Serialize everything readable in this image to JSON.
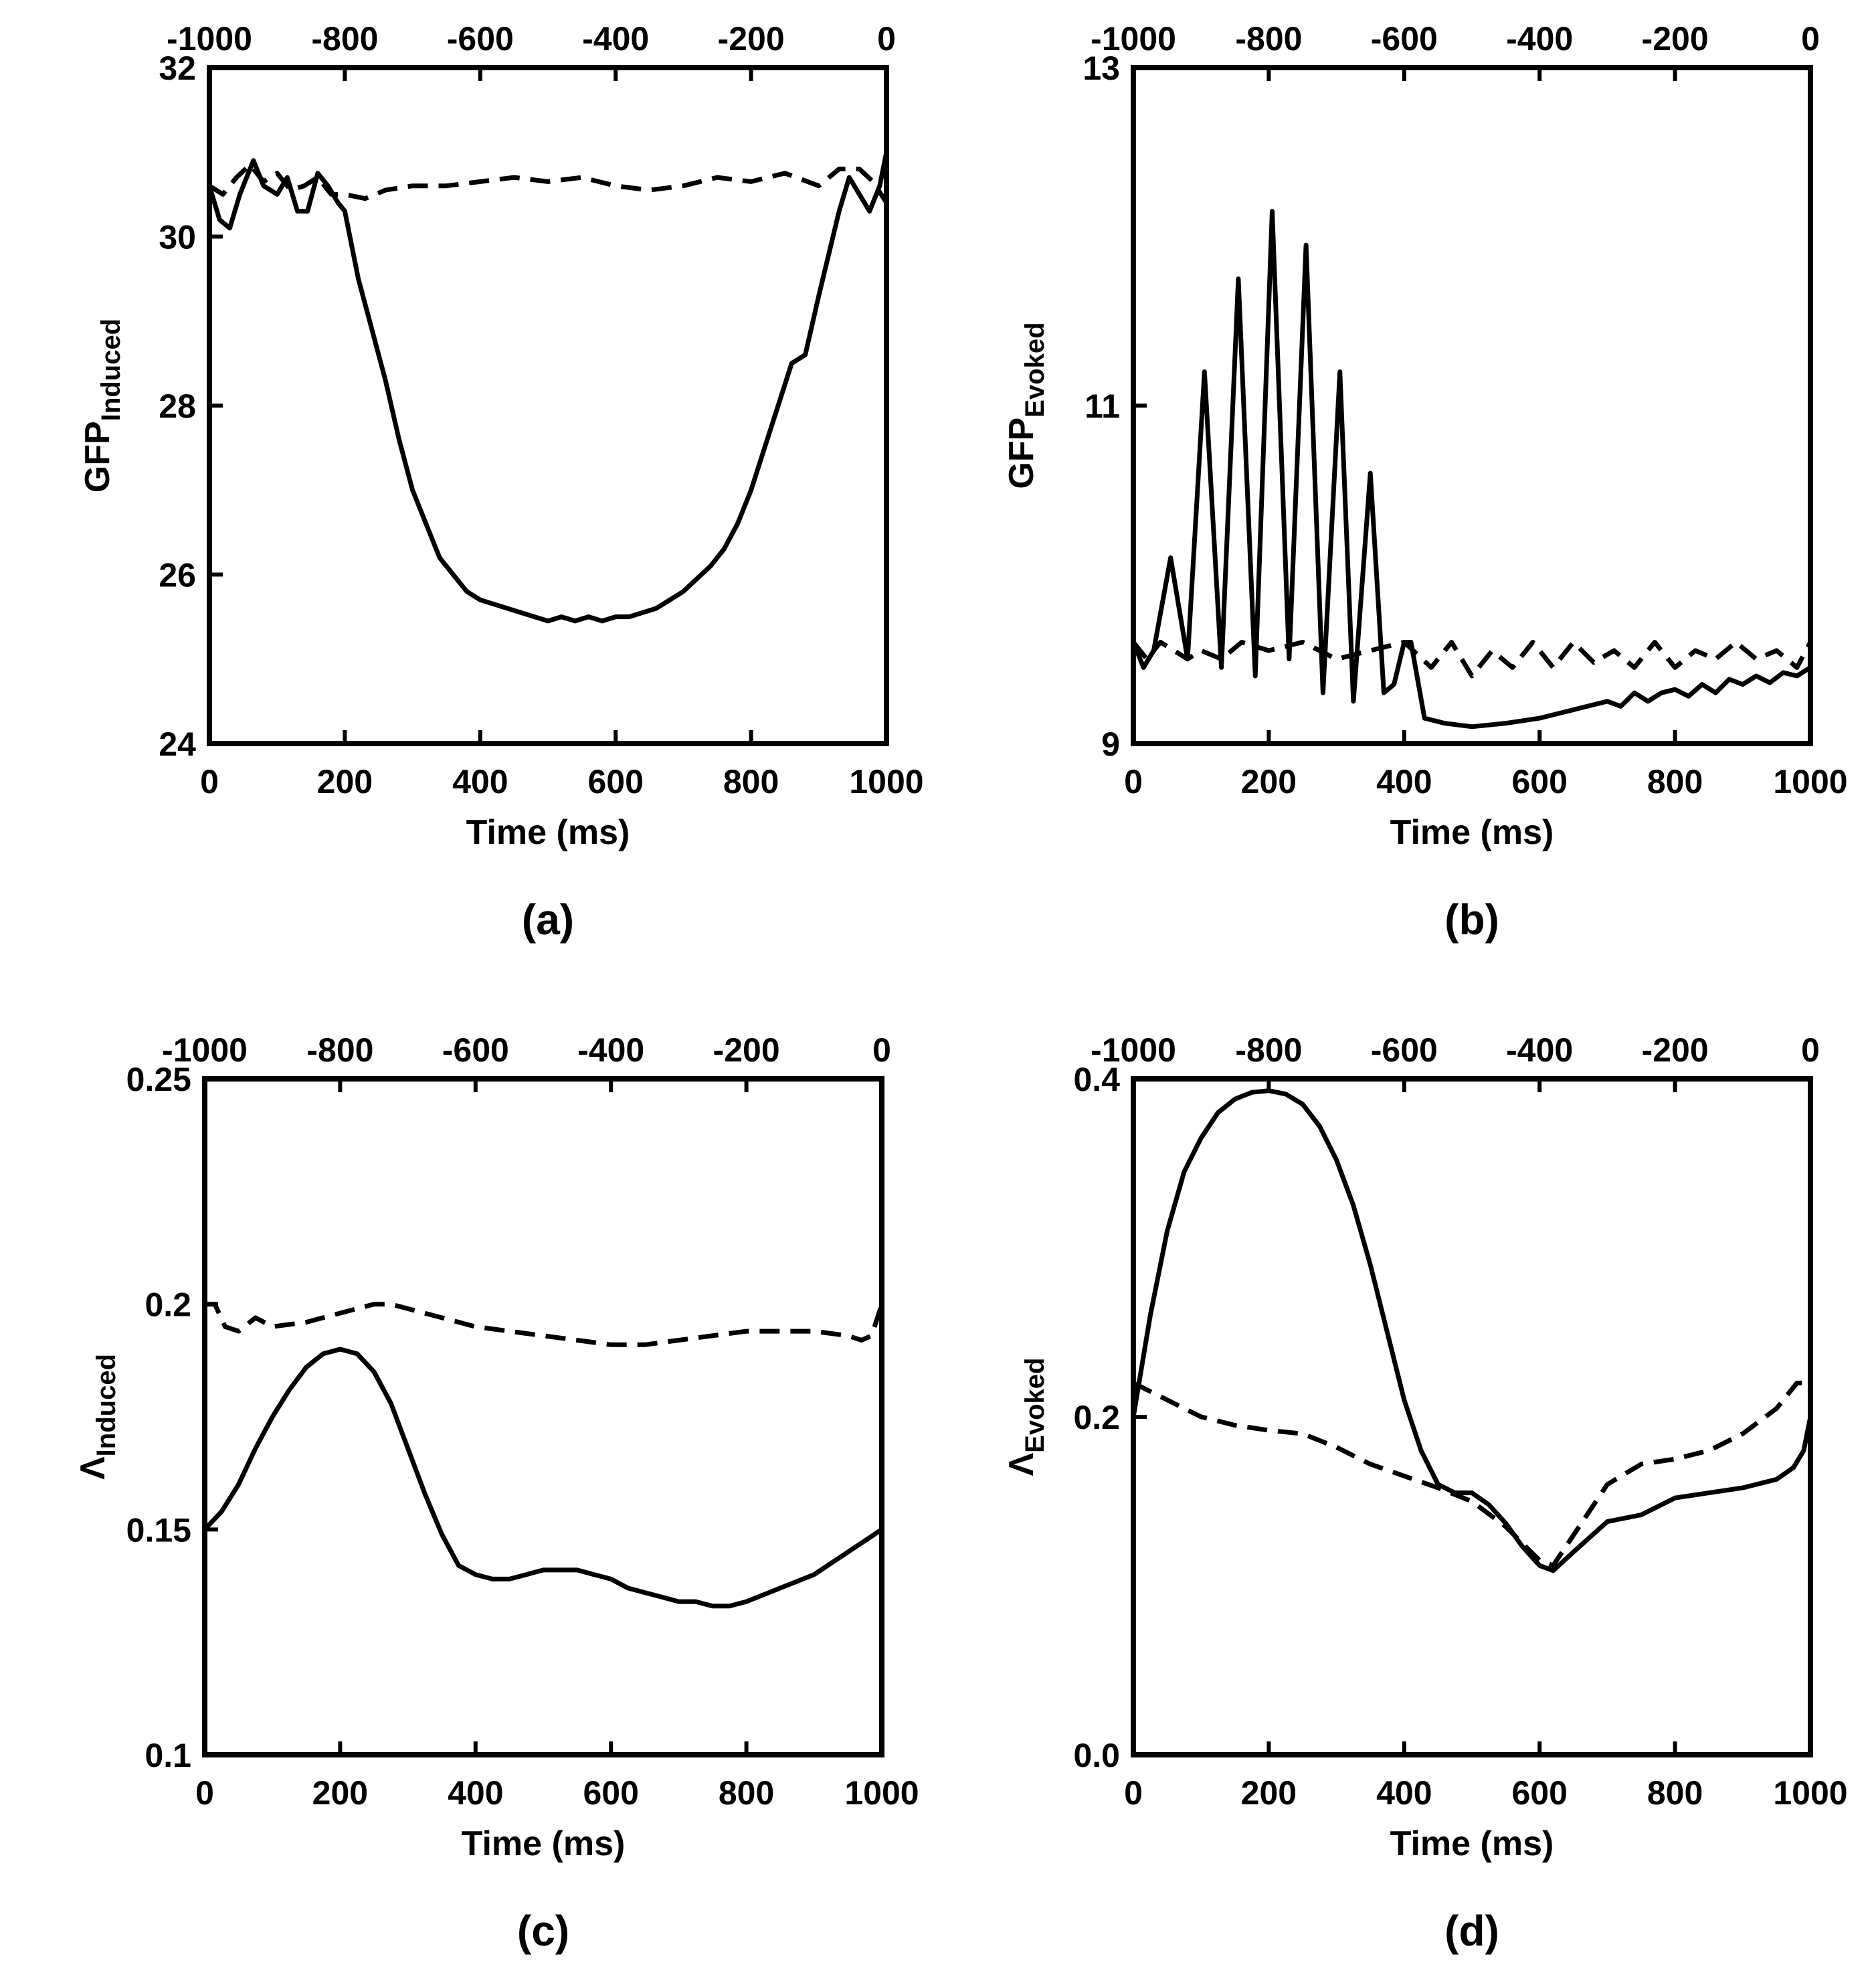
{
  "chart_data": [
    {
      "type": "line",
      "panel_label": "(a)",
      "xlabel": "Time (ms)",
      "ylabel": "GFP",
      "ylabel_sub": "Induced",
      "xlim": [
        0,
        1000
      ],
      "x_ticks": [
        0,
        200,
        400,
        600,
        800,
        1000
      ],
      "top_xlim": [
        -1000,
        0
      ],
      "top_x_ticks": [
        -1000,
        -800,
        -600,
        -400,
        -200,
        0
      ],
      "top_x_tick_labels": [
        "-1000",
        "-800",
        "-600",
        "-400",
        "-200",
        "0"
      ],
      "ylim": [
        24,
        32
      ],
      "y_ticks": [
        24,
        26,
        28,
        30,
        32
      ],
      "y_tick_labels": [
        "24",
        "26",
        "28",
        "30",
        "32"
      ],
      "series": [
        {
          "name": "solid",
          "style": "solid",
          "x": [
            0,
            15,
            30,
            45,
            65,
            80,
            100,
            115,
            130,
            145,
            160,
            175,
            190,
            200,
            220,
            240,
            260,
            280,
            300,
            320,
            340,
            360,
            380,
            400,
            420,
            440,
            460,
            480,
            500,
            520,
            540,
            560,
            580,
            600,
            620,
            640,
            660,
            680,
            700,
            720,
            740,
            760,
            780,
            800,
            820,
            840,
            860,
            880,
            900,
            915,
            930,
            945,
            960,
            975,
            990,
            1000
          ],
          "y": [
            30.6,
            30.2,
            30.1,
            30.5,
            30.9,
            30.6,
            30.5,
            30.7,
            30.3,
            30.3,
            30.75,
            30.6,
            30.4,
            30.3,
            29.5,
            28.9,
            28.3,
            27.6,
            27.0,
            26.6,
            26.2,
            26.0,
            25.8,
            25.7,
            25.65,
            25.6,
            25.55,
            25.5,
            25.45,
            25.5,
            25.45,
            25.5,
            25.45,
            25.5,
            25.5,
            25.55,
            25.6,
            25.7,
            25.8,
            25.95,
            26.1,
            26.3,
            26.6,
            27.0,
            27.5,
            28.0,
            28.5,
            28.6,
            29.3,
            29.8,
            30.3,
            30.7,
            30.5,
            30.3,
            30.6,
            31.0
          ]
        },
        {
          "name": "dashed",
          "style": "dashed",
          "x": [
            0,
            20,
            40,
            60,
            80,
            100,
            120,
            140,
            160,
            180,
            200,
            230,
            260,
            300,
            350,
            400,
            450,
            500,
            550,
            600,
            650,
            700,
            750,
            800,
            850,
            900,
            930,
            960,
            980,
            1000
          ],
          "y": [
            30.6,
            30.5,
            30.7,
            30.85,
            30.65,
            30.75,
            30.55,
            30.6,
            30.7,
            30.5,
            30.5,
            30.45,
            30.55,
            30.6,
            30.6,
            30.65,
            30.7,
            30.65,
            30.7,
            30.6,
            30.55,
            30.6,
            30.7,
            30.65,
            30.75,
            30.6,
            30.8,
            30.8,
            30.65,
            30.4
          ]
        }
      ]
    },
    {
      "type": "line",
      "panel_label": "(b)",
      "xlabel": "Time (ms)",
      "ylabel": "GFP",
      "ylabel_sub": "Evoked",
      "xlim": [
        0,
        1000
      ],
      "x_ticks": [
        0,
        200,
        400,
        600,
        800,
        1000
      ],
      "top_xlim": [
        -1000,
        0
      ],
      "top_x_ticks": [
        -1000,
        -800,
        -600,
        -400,
        -200,
        0
      ],
      "top_x_tick_labels": [
        "-1000",
        "-800",
        "-600",
        "-400",
        "-200",
        "0"
      ],
      "ylim": [
        9,
        13
      ],
      "y_ticks": [
        9,
        11,
        13
      ],
      "y_tick_labels": [
        "9",
        "11",
        "13"
      ],
      "series": [
        {
          "name": "solid",
          "style": "solid",
          "x": [
            0,
            15,
            30,
            55,
            80,
            105,
            130,
            155,
            180,
            205,
            230,
            255,
            280,
            305,
            325,
            350,
            370,
            385,
            400,
            410,
            430,
            460,
            500,
            550,
            600,
            650,
            700,
            720,
            740,
            760,
            780,
            800,
            820,
            840,
            860,
            880,
            900,
            920,
            940,
            960,
            980,
            1000
          ],
          "y": [
            9.6,
            9.45,
            9.55,
            10.1,
            9.5,
            11.2,
            9.45,
            11.75,
            9.4,
            12.15,
            9.5,
            11.95,
            9.3,
            11.2,
            9.25,
            10.6,
            9.3,
            9.35,
            9.6,
            9.6,
            9.15,
            9.12,
            9.1,
            9.12,
            9.15,
            9.2,
            9.25,
            9.22,
            9.3,
            9.25,
            9.3,
            9.32,
            9.28,
            9.35,
            9.3,
            9.38,
            9.35,
            9.4,
            9.36,
            9.42,
            9.4,
            9.45
          ]
        },
        {
          "name": "dashed",
          "style": "dashed",
          "x": [
            0,
            20,
            40,
            60,
            80,
            100,
            130,
            160,
            200,
            250,
            300,
            350,
            400,
            440,
            470,
            500,
            530,
            560,
            590,
            620,
            650,
            680,
            710,
            740,
            770,
            800,
            830,
            860,
            890,
            920,
            950,
            980,
            1000
          ],
          "y": [
            9.6,
            9.5,
            9.6,
            9.55,
            9.5,
            9.55,
            9.5,
            9.6,
            9.55,
            9.6,
            9.5,
            9.55,
            9.6,
            9.45,
            9.6,
            9.4,
            9.55,
            9.45,
            9.6,
            9.45,
            9.6,
            9.48,
            9.55,
            9.45,
            9.6,
            9.45,
            9.55,
            9.5,
            9.6,
            9.5,
            9.55,
            9.45,
            9.6
          ]
        }
      ]
    },
    {
      "type": "line",
      "panel_label": "(c)",
      "xlabel": "Time (ms)",
      "ylabel": "Λ",
      "ylabel_sub": "Induced",
      "xlim": [
        0,
        1000
      ],
      "x_ticks": [
        0,
        200,
        400,
        600,
        800,
        1000
      ],
      "top_xlim": [
        -1000,
        0
      ],
      "top_x_ticks": [
        -1000,
        -800,
        -600,
        -400,
        -200,
        0
      ],
      "top_x_tick_labels": [
        "-1000",
        "-800",
        "-600",
        "-400",
        "-200",
        "0"
      ],
      "ylim": [
        0.1,
        0.25
      ],
      "y_ticks": [
        0.1,
        0.15,
        0.2,
        0.25
      ],
      "y_tick_labels": [
        "0.1",
        "0.15",
        "0.2",
        "0.25"
      ],
      "series": [
        {
          "name": "solid",
          "style": "solid",
          "x": [
            0,
            25,
            50,
            75,
            100,
            125,
            150,
            175,
            200,
            225,
            250,
            275,
            300,
            325,
            350,
            375,
            400,
            425,
            450,
            475,
            500,
            525,
            550,
            575,
            600,
            625,
            650,
            675,
            700,
            725,
            750,
            775,
            800,
            850,
            900,
            950,
            1000
          ],
          "y": [
            0.15,
            0.154,
            0.16,
            0.168,
            0.175,
            0.181,
            0.186,
            0.189,
            0.19,
            0.189,
            0.185,
            0.178,
            0.168,
            0.158,
            0.149,
            0.142,
            0.14,
            0.139,
            0.139,
            0.14,
            0.141,
            0.141,
            0.141,
            0.14,
            0.139,
            0.137,
            0.136,
            0.135,
            0.134,
            0.134,
            0.133,
            0.133,
            0.134,
            0.137,
            0.14,
            0.145,
            0.15
          ]
        },
        {
          "name": "dashed",
          "style": "dashed",
          "x": [
            0,
            15,
            30,
            50,
            75,
            100,
            150,
            200,
            250,
            275,
            300,
            350,
            400,
            450,
            500,
            550,
            600,
            650,
            700,
            750,
            800,
            850,
            900,
            950,
            970,
            985,
            1000
          ],
          "y": [
            0.2,
            0.2,
            0.195,
            0.194,
            0.197,
            0.195,
            0.196,
            0.198,
            0.2,
            0.2,
            0.199,
            0.197,
            0.195,
            0.194,
            0.193,
            0.192,
            0.191,
            0.191,
            0.192,
            0.193,
            0.194,
            0.194,
            0.194,
            0.193,
            0.192,
            0.193,
            0.2
          ]
        }
      ]
    },
    {
      "type": "line",
      "panel_label": "(d)",
      "xlabel": "Time (ms)",
      "ylabel": "Λ",
      "ylabel_sub": "Evoked",
      "xlim": [
        0,
        1000
      ],
      "x_ticks": [
        0,
        200,
        400,
        600,
        800,
        1000
      ],
      "top_xlim": [
        -1000,
        0
      ],
      "top_x_ticks": [
        -1000,
        -800,
        -600,
        -400,
        -200,
        0
      ],
      "top_x_tick_labels": [
        "-1000",
        "-800",
        "-600",
        "-400",
        "-200",
        "0"
      ],
      "ylim": [
        0.0,
        0.4
      ],
      "y_ticks": [
        0.0,
        0.2,
        0.4
      ],
      "y_tick_labels": [
        "0.0",
        "0.2",
        "0.4"
      ],
      "series": [
        {
          "name": "solid",
          "style": "solid",
          "x": [
            0,
            25,
            50,
            75,
            100,
            125,
            150,
            175,
            200,
            225,
            250,
            275,
            300,
            325,
            350,
            375,
            400,
            425,
            450,
            475,
            500,
            525,
            550,
            575,
            600,
            620,
            650,
            700,
            750,
            800,
            850,
            900,
            950,
            975,
            990,
            1000
          ],
          "y": [
            0.2,
            0.26,
            0.31,
            0.345,
            0.365,
            0.38,
            0.388,
            0.392,
            0.393,
            0.391,
            0.385,
            0.372,
            0.352,
            0.325,
            0.29,
            0.25,
            0.21,
            0.18,
            0.16,
            0.155,
            0.155,
            0.148,
            0.137,
            0.123,
            0.112,
            0.109,
            0.12,
            0.138,
            0.142,
            0.152,
            0.155,
            0.158,
            0.163,
            0.17,
            0.18,
            0.2
          ]
        },
        {
          "name": "dashed",
          "style": "dashed",
          "x": [
            0,
            25,
            50,
            100,
            150,
            200,
            250,
            300,
            350,
            400,
            450,
            500,
            550,
            600,
            620,
            650,
            700,
            750,
            800,
            850,
            900,
            950,
            980,
            1000
          ],
          "y": [
            0.22,
            0.215,
            0.21,
            0.2,
            0.195,
            0.192,
            0.19,
            0.182,
            0.172,
            0.165,
            0.158,
            0.15,
            0.135,
            0.115,
            0.112,
            0.13,
            0.16,
            0.172,
            0.175,
            0.18,
            0.19,
            0.205,
            0.22,
            0.22
          ]
        }
      ]
    }
  ]
}
